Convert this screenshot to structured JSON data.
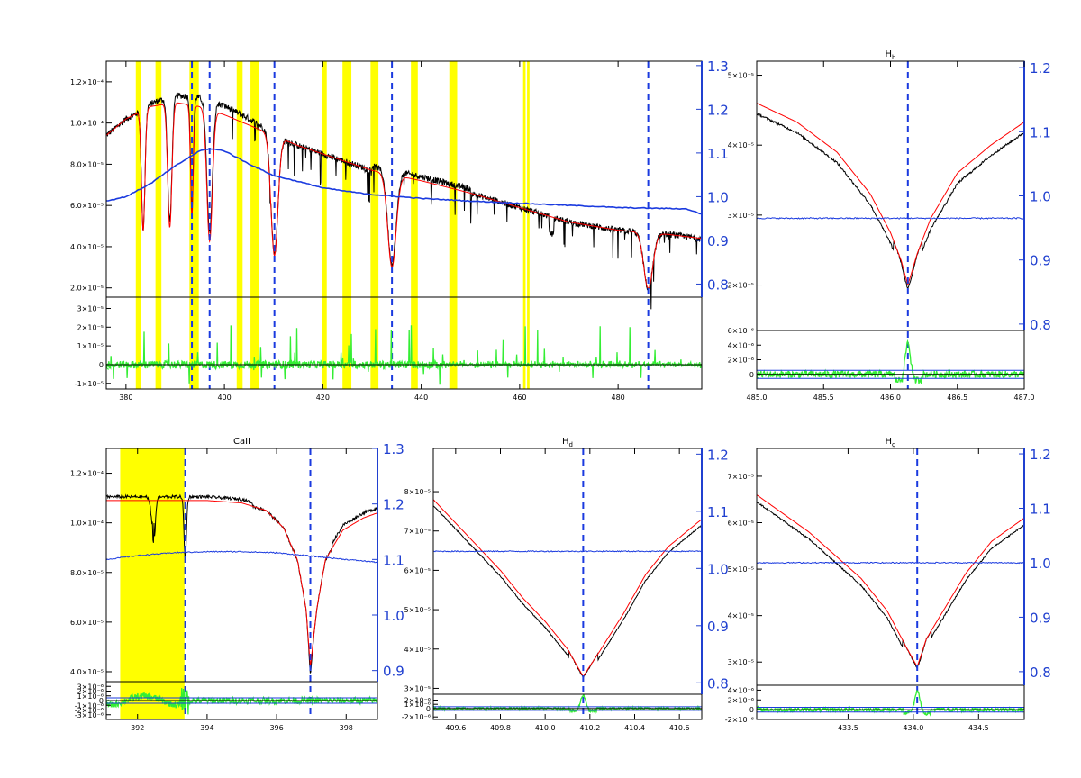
{
  "colors": {
    "observed": "#000000",
    "model": "#ff0000",
    "continuum": "#1a3adf",
    "residual": "#33ee33",
    "mask": "#ffff00",
    "line_marker": "#1a3adf",
    "right_axis": "#2040d0"
  },
  "chart_data": [
    {
      "id": "main",
      "type": "line",
      "title": "",
      "xlim": [
        376,
        497
      ],
      "x_ticks": [
        380,
        400,
        420,
        440,
        460,
        480
      ],
      "x_tick_labels": [
        "380",
        "400",
        "420",
        "440",
        "460",
        "480"
      ],
      "ylim": [
        1.55e-05,
        0.00013
      ],
      "y_ticks": [
        2e-05,
        4e-05,
        6e-05,
        8e-05,
        0.0001,
        0.00012
      ],
      "y_tick_labels": [
        "2.0×10⁻⁵",
        "4.0×10⁻⁵",
        "6.0×10⁻⁵",
        "8.0×10⁻⁵",
        "1.0×10⁻⁴",
        "1.2×10⁻⁴"
      ],
      "y2lim": [
        0.77,
        1.31
      ],
      "y2_ticks": [
        0.8,
        0.9,
        1.0,
        1.1,
        1.2,
        1.3
      ],
      "y2_tick_labels": [
        "0.8",
        "0.9",
        "1.0",
        "1.1",
        "1.2",
        "1.3"
      ],
      "res_ylim": [
        -1.3e-05,
        3.6e-05
      ],
      "res_ticks": [
        -1e-05,
        0,
        1e-05,
        2e-05,
        3e-05
      ],
      "res_tick_labels": [
        "-1×10⁻⁵",
        "0",
        "1×10⁻⁵",
        "2×10⁻⁵",
        "3×10⁻⁵"
      ],
      "continuum_level": 7e-05,
      "lines": [
        {
          "c": 383.5,
          "d": 0.55,
          "w": 0.5
        },
        {
          "c": 388.9,
          "d": 0.55,
          "w": 0.6
        },
        {
          "c": 393.4,
          "d": 0.5,
          "w": 0.4
        },
        {
          "c": 397.0,
          "d": 0.6,
          "w": 0.8
        },
        {
          "c": 410.17,
          "d": 0.62,
          "w": 1.0
        },
        {
          "c": 434.05,
          "d": 0.6,
          "w": 1.2
        },
        {
          "c": 486.13,
          "d": 0.58,
          "w": 1.3
        }
      ],
      "model_points": [
        [
          376,
          9.4e-05
        ],
        [
          380,
          0.000102
        ],
        [
          385,
          0.000108
        ],
        [
          390,
          0.00011
        ],
        [
          395,
          0.000108
        ],
        [
          400,
          0.000104
        ],
        [
          405,
          9.9e-05
        ],
        [
          410,
          9.4e-05
        ],
        [
          415,
          8.9e-05
        ],
        [
          420,
          8.5e-05
        ],
        [
          430,
          7.7e-05
        ],
        [
          440,
          7.2e-05
        ],
        [
          450,
          6.6e-05
        ],
        [
          460,
          5.9e-05
        ],
        [
          470,
          5.2e-05
        ],
        [
          480,
          4.8e-05
        ],
        [
          490,
          4.6e-05
        ],
        [
          497,
          4.4e-05
        ]
      ],
      "continuum_points": [
        [
          376,
          0.99
        ],
        [
          380,
          1.0
        ],
        [
          385,
          1.03
        ],
        [
          390,
          1.07
        ],
        [
          395,
          1.105
        ],
        [
          397,
          1.11
        ],
        [
          400,
          1.105
        ],
        [
          405,
          1.075
        ],
        [
          410,
          1.048
        ],
        [
          415,
          1.035
        ],
        [
          420,
          1.02
        ],
        [
          425,
          1.012
        ],
        [
          430,
          1.005
        ],
        [
          440,
          0.996
        ],
        [
          450,
          0.99
        ],
        [
          460,
          0.985
        ],
        [
          470,
          0.98
        ],
        [
          475,
          0.978
        ],
        [
          480,
          0.975
        ],
        [
          485,
          0.974
        ],
        [
          490,
          0.973
        ],
        [
          494,
          0.972
        ],
        [
          497,
          0.96
        ]
      ],
      "mask_bands": [
        [
          382.0,
          383.0
        ],
        [
          386.0,
          387.2
        ],
        [
          392.9,
          394.8
        ],
        [
          402.5,
          403.7
        ],
        [
          405.3,
          407.1
        ],
        [
          419.8,
          420.8
        ],
        [
          424.0,
          425.8
        ],
        [
          429.7,
          431.3
        ],
        [
          437.9,
          439.3
        ],
        [
          445.7,
          447.3
        ],
        [
          460.7,
          461.2
        ],
        [
          461.5,
          462.0
        ]
      ],
      "line_markers": [
        393.4,
        397.0,
        410.17,
        434.05,
        486.13
      ]
    },
    {
      "id": "hb",
      "type": "line",
      "title": "Hb",
      "title_base": "H",
      "title_sub": "b",
      "xlim": [
        485.0,
        487.0
      ],
      "x_ticks": [
        485.0,
        485.5,
        486.0,
        486.5,
        487.0
      ],
      "x_tick_labels": [
        "485.0",
        "485.5",
        "486.0",
        "486.5",
        "487.0"
      ],
      "ylim": [
        1.35e-05,
        5.2e-05
      ],
      "y_ticks": [
        2e-05,
        3e-05,
        4e-05,
        5e-05
      ],
      "y_tick_labels": [
        "2×10⁻⁵",
        "3×10⁻⁵",
        "4×10⁻⁵",
        "5×10⁻⁵"
      ],
      "y2lim": [
        0.79,
        1.21
      ],
      "y2_ticks": [
        0.8,
        0.9,
        1.0,
        1.1,
        1.2
      ],
      "y2_tick_labels": [
        "0.8",
        "0.9",
        "1.0",
        "1.1",
        "1.2"
      ],
      "res_ylim": [
        -2e-06,
        6e-06
      ],
      "res_ticks": [
        0,
        2e-06,
        4e-06,
        6e-06
      ],
      "res_tick_labels": [
        "0",
        "2×10⁻⁶",
        "4×10⁻⁶",
        "6×10⁻⁶"
      ],
      "wing_points": [
        [
          485.0,
          4.6e-05
        ],
        [
          485.3,
          4.33e-05
        ],
        [
          485.6,
          3.9e-05
        ],
        [
          485.85,
          3.3e-05
        ],
        [
          486.0,
          2.75e-05
        ],
        [
          486.08,
          2.35e-05
        ],
        [
          486.13,
          2e-05
        ],
        [
          486.2,
          2.45e-05
        ],
        [
          486.3,
          2.95e-05
        ],
        [
          486.5,
          3.6e-05
        ],
        [
          486.75,
          4e-05
        ],
        [
          487.0,
          4.33e-05
        ]
      ],
      "core_center": 486.13,
      "observed_core_min": 1.6e-05,
      "continuum_value": 0.965,
      "line_markers": [
        486.13
      ]
    },
    {
      "id": "caii",
      "type": "line",
      "title": "CaII",
      "xlim": [
        391.1,
        398.9
      ],
      "x_ticks": [
        392,
        394,
        396,
        398
      ],
      "x_tick_labels": [
        "392",
        "394",
        "396",
        "398"
      ],
      "ylim": [
        3.6e-05,
        0.00013
      ],
      "y_ticks": [
        4e-05,
        6e-05,
        8e-05,
        0.0001,
        0.00012
      ],
      "y_tick_labels": [
        "4.0×10⁻⁵",
        "6.0×10⁻⁵",
        "8.0×10⁻⁵",
        "1.0×10⁻⁴",
        "1.2×10⁻⁴"
      ],
      "y2lim": [
        0.88,
        1.3
      ],
      "y2_ticks": [
        0.9,
        1.0,
        1.1,
        1.2,
        1.3
      ],
      "y2_tick_labels": [
        "0.9",
        "1.0",
        "1.1",
        "1.2",
        "1.3"
      ],
      "res_ylim": [
        -4e-06,
        4e-06
      ],
      "res_ticks": [
        -3e-06,
        -2e-06,
        -1e-06,
        0,
        1e-06,
        2e-06,
        3e-06
      ],
      "res_tick_labels": [
        "-3×10⁻⁶",
        "-2×10⁻⁶",
        "-1×10⁻⁶",
        "0",
        "1×10⁻⁶",
        "2×10⁻⁶",
        "3×10⁻⁶"
      ],
      "model_points": [
        [
          391.1,
          0.000109
        ],
        [
          392,
          0.000109
        ],
        [
          393,
          0.000109
        ],
        [
          394,
          0.000109
        ],
        [
          395,
          0.000108
        ],
        [
          395.7,
          0.000105
        ],
        [
          396.2,
          9.8e-05
        ],
        [
          396.6,
          8.5e-05
        ],
        [
          396.85,
          6.5e-05
        ],
        [
          396.97,
          4.2e-05
        ],
        [
          397.15,
          6.5e-05
        ],
        [
          397.4,
          8.5e-05
        ],
        [
          397.9,
          9.7e-05
        ],
        [
          398.5,
          0.000102
        ],
        [
          398.9,
          0.000104
        ]
      ],
      "continuum_points": [
        [
          391.1,
          1.1
        ],
        [
          392,
          1.107
        ],
        [
          393,
          1.112
        ],
        [
          394,
          1.114
        ],
        [
          395,
          1.114
        ],
        [
          396,
          1.112
        ],
        [
          397,
          1.106
        ],
        [
          398,
          1.1
        ],
        [
          398.9,
          1.095
        ]
      ],
      "mask_bands": [
        [
          391.5,
          393.35
        ]
      ],
      "line_markers": [
        393.37,
        396.97
      ]
    },
    {
      "id": "hd",
      "type": "line",
      "title": "Hd",
      "title_base": "H",
      "title_sub": "d",
      "xlim": [
        409.5,
        410.7
      ],
      "x_ticks": [
        409.6,
        409.8,
        410.0,
        410.2,
        410.4,
        410.6
      ],
      "x_tick_labels": [
        "409.6",
        "409.8",
        "410.0",
        "410.2",
        "410.4",
        "410.6"
      ],
      "ylim": [
        2.85e-05,
        9.1e-05
      ],
      "y_ticks": [
        3e-05,
        4e-05,
        5e-05,
        6e-05,
        7e-05,
        8e-05
      ],
      "y_tick_labels": [
        "3×10⁻⁵",
        "4×10⁻⁵",
        "5×10⁻⁵",
        "6×10⁻⁵",
        "7×10⁻⁵",
        "8×10⁻⁵"
      ],
      "y2lim": [
        0.78,
        1.21
      ],
      "y2_ticks": [
        0.8,
        0.9,
        1.0,
        1.1,
        1.2
      ],
      "y2_tick_labels": [
        "0.8",
        "0.9",
        "1.0",
        "1.1",
        "1.2"
      ],
      "res_ylim": [
        -2.6e-06,
        3.4e-06
      ],
      "res_ticks": [
        -2e-06,
        0,
        1e-06,
        2e-06
      ],
      "res_tick_labels": [
        "-2×10⁻⁶",
        "0",
        "1×10⁻⁶",
        "2×10⁻⁶"
      ],
      "wing_points": [
        [
          409.5,
          7.8e-05
        ],
        [
          409.6,
          7.2e-05
        ],
        [
          409.7,
          6.6e-05
        ],
        [
          409.8,
          6e-05
        ],
        [
          409.9,
          5.3e-05
        ],
        [
          410.0,
          4.7e-05
        ],
        [
          410.1,
          4e-05
        ],
        [
          410.17,
          3.3e-05
        ],
        [
          410.25,
          4e-05
        ],
        [
          410.35,
          4.9e-05
        ],
        [
          410.45,
          5.9e-05
        ],
        [
          410.55,
          6.6e-05
        ],
        [
          410.7,
          7.3e-05
        ]
      ],
      "core_center": 410.17,
      "observed_core_min": 3.2e-05,
      "continuum_value": 1.03,
      "line_markers": [
        410.17
      ]
    },
    {
      "id": "hg",
      "type": "line",
      "title": "Hg",
      "title_base": "H",
      "title_sub": "g",
      "xlim": [
        432.8,
        434.85
      ],
      "x_ticks": [
        433.5,
        434.0,
        434.5
      ],
      "x_tick_labels": [
        "433.5",
        "434.0",
        "434.5"
      ],
      "ylim": [
        2.5e-05,
        7.6e-05
      ],
      "y_ticks": [
        3e-05,
        4e-05,
        5e-05,
        6e-05,
        7e-05
      ],
      "y_tick_labels": [
        "3×10⁻⁵",
        "4×10⁻⁵",
        "5×10⁻⁵",
        "6×10⁻⁵",
        "7×10⁻⁵"
      ],
      "y2lim": [
        0.775,
        1.21
      ],
      "y2_ticks": [
        0.8,
        0.9,
        1.0,
        1.1,
        1.2
      ],
      "y2_tick_labels": [
        "0.8",
        "0.9",
        "1.0",
        "1.1",
        "1.2"
      ],
      "res_ylim": [
        -2e-06,
        5e-06
      ],
      "res_ticks": [
        -2e-06,
        0,
        2e-06,
        4e-06
      ],
      "res_tick_labels": [
        "-2×10⁻⁶",
        "0",
        "2×10⁻⁶",
        "4×10⁻⁶"
      ],
      "wing_points": [
        [
          432.8,
          6.6e-05
        ],
        [
          433.0,
          6.2e-05
        ],
        [
          433.2,
          5.8e-05
        ],
        [
          433.4,
          5.3e-05
        ],
        [
          433.6,
          4.8e-05
        ],
        [
          433.8,
          4.1e-05
        ],
        [
          433.95,
          3.3e-05
        ],
        [
          434.03,
          2.9e-05
        ],
        [
          434.1,
          3.5e-05
        ],
        [
          434.25,
          4.2e-05
        ],
        [
          434.4,
          4.9e-05
        ],
        [
          434.6,
          5.6e-05
        ],
        [
          434.85,
          6.1e-05
        ]
      ],
      "core_center": 434.03,
      "observed_core_min": 2.75e-05,
      "continuum_value": 1.0,
      "line_markers": [
        434.03
      ]
    }
  ]
}
